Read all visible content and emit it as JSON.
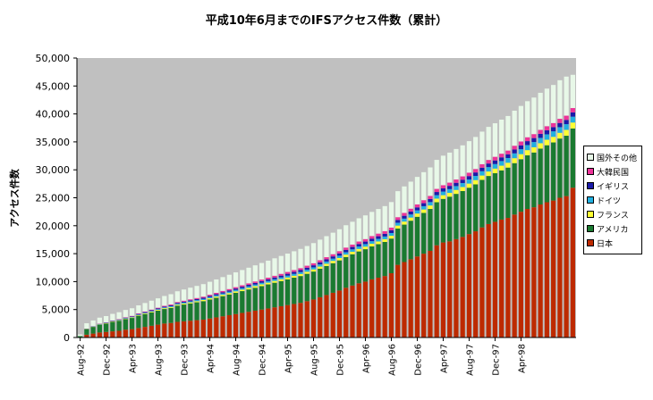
{
  "chart_data": {
    "type": "bar",
    "stacked": true,
    "title": "平成10年6月までのIFSアクセス件数（累計）",
    "ylabel": "アクセス件数",
    "xlabel": "",
    "ylim": [
      0,
      50000
    ],
    "yticks": [
      "0",
      "5,000",
      "10,000",
      "15,000",
      "20,000",
      "25,000",
      "30,000",
      "35,000",
      "40,000",
      "45,000",
      "50,000"
    ],
    "xtick_labels": [
      "Aug-92",
      "Dec-92",
      "Apr-93",
      "Aug-93",
      "Dec-93",
      "Apr-94",
      "Aug-94",
      "Dec-94",
      "Apr-95",
      "Aug-95",
      "Dec-95",
      "Apr-96",
      "Aug-96",
      "Dec-96",
      "Apr-97",
      "Aug-97",
      "Dec-97",
      "Apr-98"
    ],
    "plot_background": "#c0c0c0",
    "legend_position": "right",
    "series": [
      {
        "name": "日本",
        "color": "#bd2a00",
        "values": [
          50,
          500,
          700,
          900,
          1000,
          1100,
          1200,
          1400,
          1500,
          1700,
          1900,
          2100,
          2300,
          2500,
          2600,
          2800,
          2900,
          3000,
          3100,
          3200,
          3400,
          3600,
          3800,
          4000,
          4200,
          4400,
          4600,
          4800,
          5000,
          5200,
          5400,
          5600,
          5800,
          6000,
          6200,
          6500,
          6800,
          7200,
          7600,
          8000,
          8400,
          8900,
          9300,
          9700,
          10000,
          10400,
          10700,
          11000,
          11500,
          13000,
          13500,
          14000,
          14500,
          15000,
          15500,
          16500,
          17000,
          17200,
          17600,
          18000,
          18500,
          19000,
          19700,
          20300,
          20700,
          21100,
          21400,
          22000,
          22500,
          23000,
          23300,
          23800,
          24200,
          24500,
          25000,
          25300,
          26800
        ]
      },
      {
        "name": "アメリカ",
        "color": "#1a7a30",
        "values": [
          200,
          1000,
          1200,
          1400,
          1500,
          1700,
          1800,
          1900,
          2000,
          2200,
          2300,
          2400,
          2500,
          2600,
          2700,
          2900,
          3000,
          3100,
          3200,
          3300,
          3400,
          3500,
          3600,
          3700,
          3800,
          3900,
          4000,
          4100,
          4200,
          4300,
          4400,
          4500,
          4600,
          4700,
          4800,
          4900,
          5000,
          5100,
          5200,
          5300,
          5400,
          5500,
          5600,
          5700,
          5800,
          5900,
          6000,
          6100,
          6200,
          6500,
          6700,
          6900,
          7100,
          7300,
          7500,
          7700,
          7800,
          8000,
          8100,
          8200,
          8300,
          8400,
          8500,
          8600,
          8700,
          8800,
          9000,
          9200,
          9400,
          9600,
          9800,
          10000,
          10200,
          10400,
          10600,
          10800,
          10600
        ]
      },
      {
        "name": "フランス",
        "color": "#ffff33",
        "values": [
          0,
          30,
          40,
          50,
          60,
          70,
          80,
          90,
          100,
          110,
          120,
          130,
          140,
          150,
          160,
          170,
          180,
          190,
          200,
          210,
          220,
          230,
          240,
          250,
          260,
          270,
          280,
          290,
          300,
          310,
          320,
          330,
          340,
          350,
          360,
          370,
          380,
          390,
          400,
          410,
          420,
          430,
          440,
          450,
          460,
          470,
          480,
          490,
          500,
          520,
          540,
          560,
          580,
          600,
          620,
          640,
          660,
          680,
          700,
          720,
          740,
          760,
          780,
          800,
          820,
          840,
          860,
          880,
          900,
          920,
          940,
          960,
          980,
          1000,
          1020,
          1040,
          1060
        ]
      },
      {
        "name": "ドイツ",
        "color": "#22b0e0",
        "values": [
          0,
          20,
          30,
          40,
          50,
          60,
          70,
          80,
          90,
          100,
          110,
          120,
          130,
          140,
          150,
          160,
          170,
          180,
          190,
          200,
          210,
          220,
          230,
          240,
          250,
          260,
          270,
          280,
          290,
          300,
          310,
          320,
          330,
          340,
          350,
          360,
          370,
          380,
          390,
          400,
          410,
          420,
          430,
          440,
          450,
          460,
          470,
          480,
          490,
          510,
          530,
          550,
          570,
          590,
          610,
          630,
          650,
          670,
          690,
          710,
          730,
          750,
          770,
          790,
          810,
          830,
          850,
          870,
          890,
          910,
          930,
          950,
          970,
          990,
          1010,
          1030,
          1050
        ]
      },
      {
        "name": "イギリス",
        "color": "#1a1aa8",
        "values": [
          0,
          20,
          30,
          40,
          50,
          60,
          70,
          80,
          90,
          100,
          110,
          120,
          130,
          140,
          150,
          160,
          170,
          180,
          190,
          200,
          210,
          220,
          230,
          240,
          250,
          260,
          270,
          280,
          290,
          300,
          310,
          320,
          330,
          340,
          350,
          360,
          370,
          380,
          390,
          400,
          410,
          420,
          430,
          440,
          450,
          460,
          470,
          480,
          490,
          500,
          510,
          520,
          530,
          540,
          550,
          560,
          570,
          580,
          590,
          600,
          610,
          620,
          630,
          640,
          650,
          660,
          670,
          680,
          690,
          700,
          710,
          720,
          730,
          740,
          750,
          760,
          770
        ]
      },
      {
        "name": "大韓民国",
        "color": "#ee3399",
        "values": [
          0,
          20,
          30,
          40,
          50,
          60,
          70,
          80,
          90,
          100,
          110,
          120,
          130,
          140,
          150,
          160,
          170,
          180,
          190,
          200,
          210,
          220,
          230,
          240,
          250,
          260,
          270,
          280,
          290,
          300,
          310,
          320,
          330,
          340,
          350,
          360,
          370,
          380,
          390,
          400,
          410,
          420,
          430,
          440,
          450,
          460,
          470,
          480,
          490,
          500,
          510,
          520,
          530,
          540,
          550,
          560,
          570,
          580,
          590,
          600,
          610,
          620,
          630,
          640,
          650,
          660,
          670,
          680,
          690,
          700,
          710,
          720,
          730,
          740,
          750,
          760,
          770
        ]
      },
      {
        "name": "国外その他",
        "color": "#e8f8e8",
        "values": [
          300,
          960,
          1020,
          1080,
          1120,
          1180,
          1230,
          1300,
          1360,
          1440,
          1520,
          1600,
          1680,
          1760,
          1840,
          1920,
          2000,
          2080,
          2160,
          2240,
          2320,
          2400,
          2480,
          2560,
          2640,
          2720,
          2800,
          2880,
          2960,
          3040,
          3120,
          3200,
          3280,
          3360,
          3440,
          3520,
          3600,
          3680,
          3760,
          3840,
          3920,
          4000,
          4080,
          4160,
          4240,
          4320,
          4400,
          4480,
          4560,
          4650,
          4740,
          4830,
          4920,
          5010,
          5100,
          5190,
          5280,
          5370,
          5460,
          5550,
          5640,
          5730,
          5820,
          5910,
          6000,
          6090,
          6180,
          6270,
          6360,
          6450,
          6540,
          6630,
          6720,
          6810,
          6900,
          6990,
          5950
        ]
      }
    ]
  }
}
